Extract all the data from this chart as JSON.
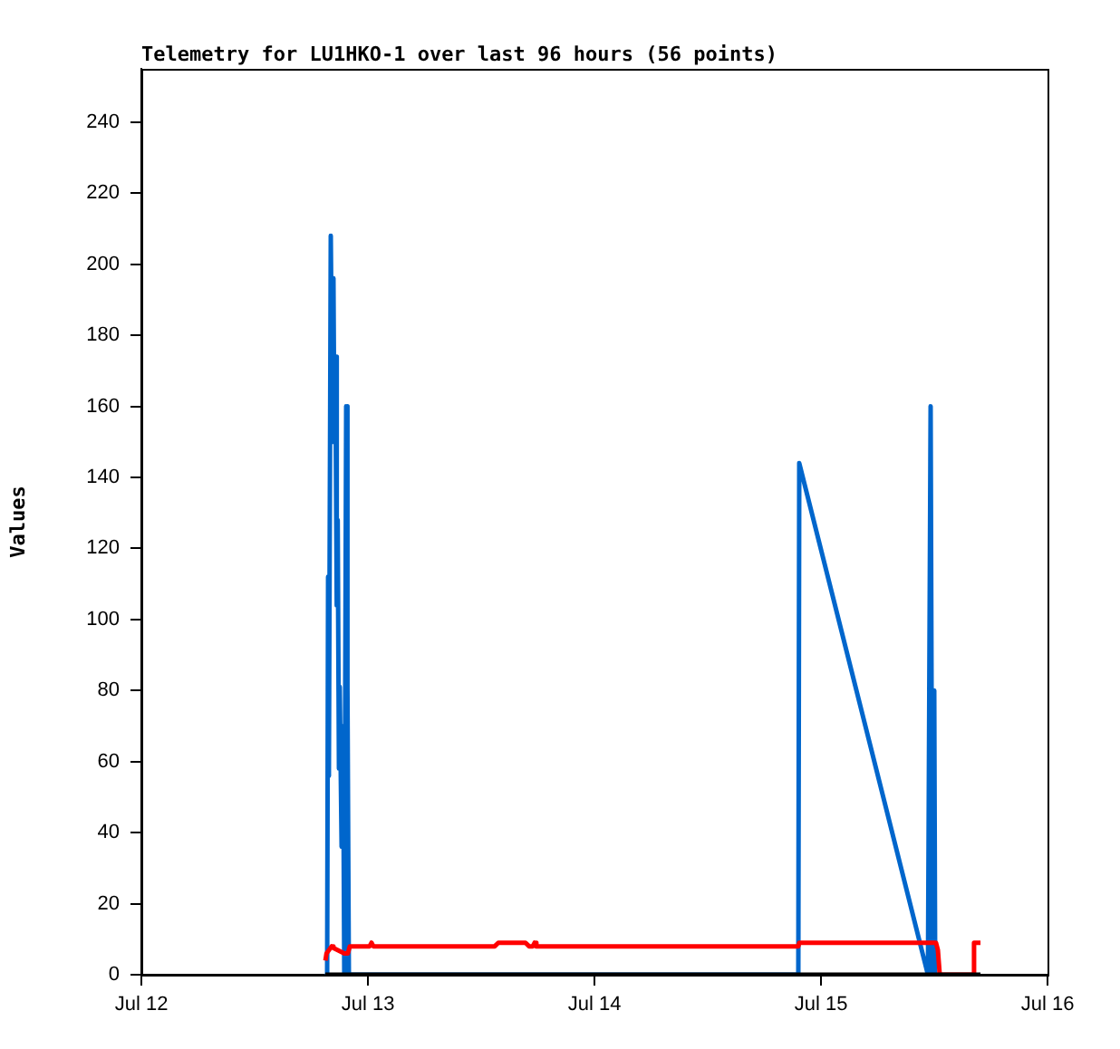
{
  "chart_data": {
    "type": "line",
    "title": "Telemetry for LU1HKO-1 over last 96 hours (56 points)",
    "ylabel": "Values",
    "xlim": [
      "--07-12",
      "--07-16"
    ],
    "xticks": [
      {
        "value": "--07-12",
        "label": "Jul 12"
      },
      {
        "value": "--07-13",
        "label": "Jul 13"
      },
      {
        "value": "--07-14",
        "label": "Jul 14"
      },
      {
        "value": "--07-15",
        "label": "Jul 15"
      },
      {
        "value": "--07-16",
        "label": "Jul 16"
      }
    ],
    "ylim": [
      0,
      255
    ],
    "yticks": [
      0,
      20,
      40,
      60,
      80,
      100,
      120,
      140,
      160,
      180,
      200,
      220,
      240
    ],
    "grid": false,
    "legend": false,
    "marker": "none",
    "line_style": "solid",
    "series": [
      {
        "color": "#000000",
        "x": [
          "--07-12T19:29",
          "--07-15T16:54"
        ],
        "values": [
          0,
          0
        ]
      },
      {
        "color": "#ff0000",
        "x": [
          "--07-12T19:30",
          "--07-12T19:37",
          "--07-12T20:10",
          "--07-12T20:21",
          "--07-12T21:30",
          "--07-12T21:53",
          "--07-12T22:05",
          "--07-13T00:11",
          "--07-13T00:23",
          "--07-13T00:35",
          "--07-13T13:26",
          "--07-13T13:49",
          "--07-13T16:42",
          "--07-13T17:05",
          "--07-13T17:28",
          "--07-13T17:40",
          "--07-13T17:51",
          "--07-14T21:36",
          "--07-14T21:42",
          "--07-15T12:11",
          "--07-15T12:23",
          "--07-15T12:35",
          "--07-15T16:08",
          "--07-15T16:13",
          "--07-15T16:54"
        ],
        "values": [
          4,
          6,
          8,
          7.5,
          6,
          6,
          8,
          8,
          9,
          8,
          8,
          9,
          9,
          8,
          8,
          9,
          8,
          8,
          9,
          9,
          7,
          0,
          0,
          9,
          9
        ]
      },
      {
        "color": "#0066cc",
        "x": [
          "--07-12T19:41",
          "--07-12T19:47",
          "--07-12T19:52",
          "--07-12T20:04",
          "--07-12T20:15",
          "--07-12T20:21",
          "--07-12T20:27",
          "--07-12T20:33",
          "--07-12T20:42",
          "--07-12T20:48",
          "--07-12T20:56",
          "--07-12T21:01",
          "--07-12T21:13",
          "--07-12T21:22",
          "--07-12T21:30",
          "--07-12T21:42",
          "--07-12T21:47",
          "--07-12T21:53",
          "--07-12T21:59",
          "--07-14T21:36",
          "--07-14T21:42",
          "--07-15T11:20",
          "--07-15T11:37",
          "--07-15T11:49",
          "--07-15T12:00",
          "--07-15T12:06"
        ],
        "values": [
          0,
          112,
          56,
          208,
          150,
          196,
          150,
          174,
          104,
          128,
          58,
          81,
          36,
          70,
          0,
          160,
          30,
          81,
          0,
          0,
          144,
          0,
          160,
          0,
          80,
          0
        ]
      }
    ]
  }
}
